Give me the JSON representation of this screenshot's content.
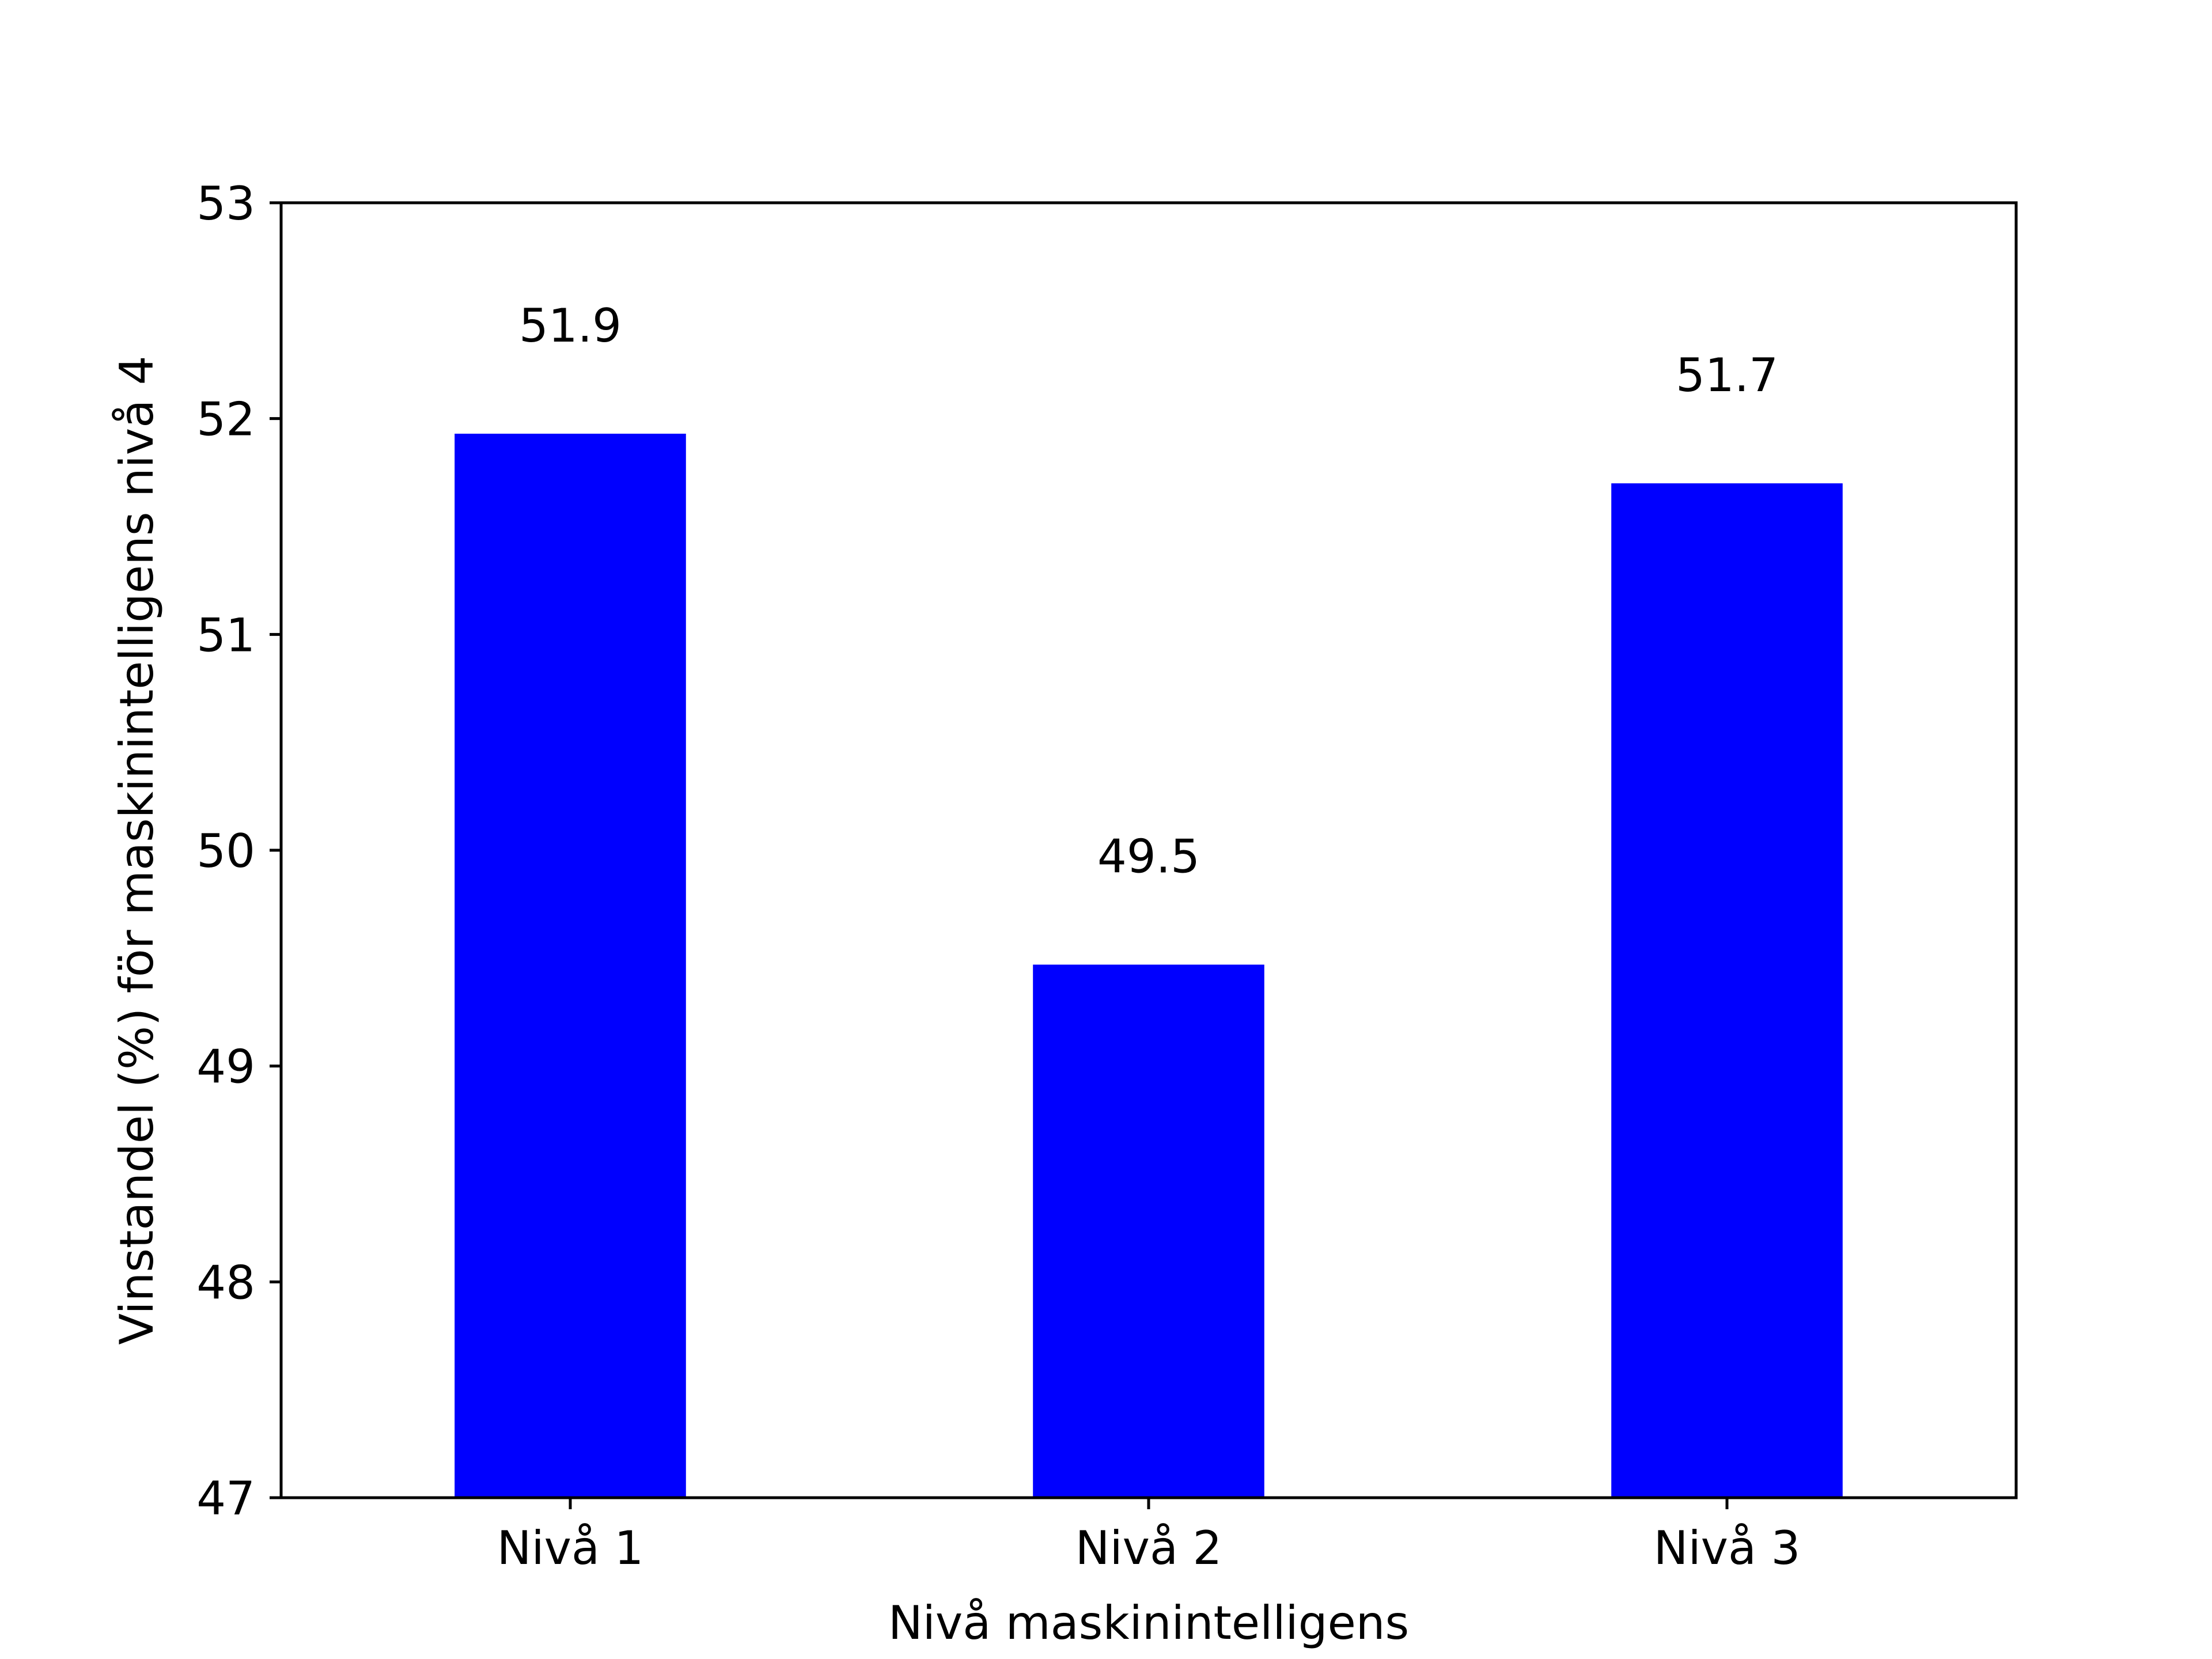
{
  "chart_data": {
    "type": "bar",
    "categories": [
      "Nivå 1",
      "Nivå 2",
      "Nivå 3"
    ],
    "values": [
      51.93,
      49.47,
      51.7
    ],
    "value_labels": [
      "51.9",
      "49.5",
      "51.7"
    ],
    "yticks": [
      "47",
      "48",
      "49",
      "50",
      "51",
      "52",
      "53"
    ],
    "xlabel": "Nivå maskinintelligens",
    "ylabel": "Vinstandel (%) för maskinintelligens nivå 4",
    "ylim": [
      47,
      53
    ],
    "grid": false,
    "legend": "none",
    "bar_color": "#0000ff"
  }
}
